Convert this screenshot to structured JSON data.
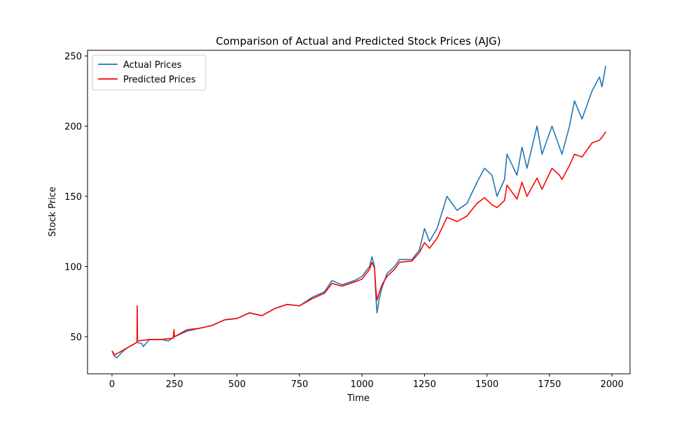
{
  "chart_data": {
    "type": "line",
    "title": "Comparison of Actual and Predicted Stock Prices (AJG)",
    "xlabel": "Time",
    "ylabel": "Stock Price",
    "xlim": [
      -98,
      2072
    ],
    "ylim": [
      23.6,
      254
    ],
    "xticks": [
      0,
      250,
      500,
      750,
      1000,
      1250,
      1500,
      1750,
      2000
    ],
    "yticks": [
      50,
      100,
      150,
      200,
      250
    ],
    "legend": "upper left",
    "grid": false,
    "series": [
      {
        "name": "Actual Prices",
        "color": "#1f77b4",
        "x": [
          0,
          10,
          20,
          40,
          60,
          80,
          100,
          120,
          125,
          150,
          200,
          225,
          250,
          300,
          350,
          400,
          450,
          500,
          550,
          600,
          650,
          700,
          750,
          800,
          850,
          880,
          920,
          970,
          1000,
          1030,
          1040,
          1050,
          1055,
          1060,
          1070,
          1080,
          1100,
          1130,
          1150,
          1200,
          1230,
          1250,
          1270,
          1300,
          1340,
          1380,
          1420,
          1460,
          1490,
          1520,
          1540,
          1570,
          1580,
          1620,
          1640,
          1660,
          1700,
          1720,
          1760,
          1790,
          1800,
          1830,
          1850,
          1880,
          1920,
          1950,
          1960,
          1975
        ],
        "values": [
          40,
          36,
          35,
          39,
          42,
          44,
          46,
          45,
          43,
          48,
          48,
          47,
          50,
          54,
          56,
          58,
          62,
          63,
          67,
          65,
          70,
          73,
          72,
          78,
          82,
          90,
          87,
          90,
          93,
          100,
          107,
          100,
          80,
          67,
          78,
          85,
          95,
          100,
          105,
          105,
          112,
          127,
          118,
          127,
          150,
          140,
          145,
          160,
          170,
          165,
          150,
          162,
          180,
          165,
          185,
          170,
          200,
          180,
          200,
          185,
          180,
          200,
          218,
          205,
          225,
          235,
          228,
          243
        ]
      },
      {
        "name": "Predicted Prices",
        "color": "#ff0000",
        "x": [
          0,
          10,
          40,
          60,
          100,
          101,
          102,
          150,
          200,
          245,
          248,
          250,
          300,
          350,
          400,
          450,
          500,
          550,
          600,
          650,
          700,
          750,
          800,
          850,
          880,
          920,
          970,
          1000,
          1030,
          1040,
          1050,
          1055,
          1060,
          1070,
          1080,
          1100,
          1130,
          1150,
          1200,
          1230,
          1250,
          1270,
          1300,
          1340,
          1380,
          1420,
          1460,
          1490,
          1520,
          1540,
          1570,
          1580,
          1620,
          1640,
          1660,
          1700,
          1720,
          1760,
          1790,
          1800,
          1830,
          1850,
          1880,
          1920,
          1950,
          1960,
          1975
        ],
        "values": [
          40,
          37,
          40,
          42,
          46,
          72,
          47,
          48,
          48,
          49,
          55,
          50,
          55,
          56,
          58,
          62,
          63,
          67,
          65,
          70,
          73,
          72,
          77,
          81,
          88,
          86,
          89,
          91,
          98,
          103,
          99,
          85,
          76,
          82,
          87,
          93,
          98,
          103,
          104,
          110,
          117,
          113,
          120,
          135,
          132,
          136,
          145,
          149,
          144,
          142,
          147,
          158,
          148,
          160,
          150,
          163,
          155,
          170,
          165,
          162,
          172,
          180,
          178,
          188,
          190,
          192,
          196
        ]
      }
    ]
  }
}
